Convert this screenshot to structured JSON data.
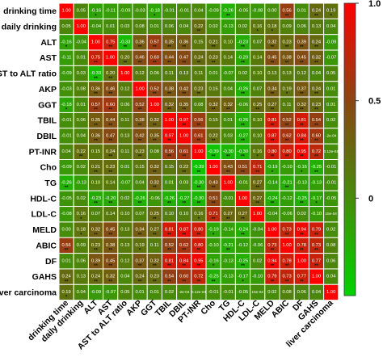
{
  "chart_data": {
    "type": "heatmap",
    "title": "",
    "xlabel": "",
    "ylabel": "",
    "variables": [
      "drinking time",
      "daily drinking",
      "ALT",
      "AST",
      "AST to ALT ratio",
      "AKP",
      "GGT",
      "TBIL",
      "DBIL",
      "PT-INR",
      "Cho",
      "TG",
      "HDL-C",
      "LDL-C",
      "MELD",
      "ABIC",
      "DF",
      "GAHS",
      "liver carcinoma"
    ],
    "values": [
      [
        "1.00",
        "0.05",
        "-0.16",
        "-0.11",
        "-0.09",
        "-0.03",
        "-0.18",
        "-0.01",
        "-0.01",
        "0.04",
        "-0.09",
        "-0.26",
        "-0.05",
        "-0.08",
        "0.00",
        "0.56",
        "0.01",
        "0.24",
        "0.19"
      ],
      [
        "0.05",
        "1.00",
        "-0.04",
        "0.01",
        "0.03",
        "0.08",
        "0.01",
        "0.06",
        "0.04",
        "0.22",
        "0.02",
        "-0.13",
        "0.02",
        "0.16",
        "0.18",
        "0.09",
        "0.06",
        "0.13",
        "0.04"
      ],
      [
        "-0.16",
        "-0.04",
        "1.00",
        "0.75",
        "-0.33",
        "0.36",
        "0.57",
        "0.35",
        "0.36",
        "0.15",
        "0.21",
        "0.10",
        "-0.23",
        "0.07",
        "0.32",
        "0.23",
        "0.39",
        "0.24",
        "-0.09"
      ],
      [
        "-0.11",
        "0.01",
        "0.75",
        "1.00",
        "0.20",
        "0.46",
        "0.60",
        "0.44",
        "0.47",
        "0.24",
        "0.23",
        "0.14",
        "-0.20",
        "0.14",
        "0.45",
        "0.38",
        "0.45",
        "0.32",
        "-0.07"
      ],
      [
        "-0.09",
        "0.03",
        "-0.33",
        "0.20",
        "1.00",
        "0.12",
        "0.06",
        "0.11",
        "0.13",
        "0.11",
        "0.01",
        "-0.07",
        "0.02",
        "0.10",
        "0.13",
        "0.13",
        "0.12",
        "0.04",
        "0.05"
      ],
      [
        "-0.03",
        "0.08",
        "0.36",
        "0.46",
        "0.12",
        "1.00",
        "0.52",
        "0.38",
        "0.42",
        "0.23",
        "0.15",
        "0.04",
        "-0.26",
        "0.07",
        "0.34",
        "0.19",
        "0.37",
        "0.24",
        "0.01"
      ],
      [
        "-0.18",
        "0.01",
        "0.57",
        "0.60",
        "0.06",
        "0.52",
        "1.00",
        "0.32",
        "0.35",
        "0.08",
        "0.32",
        "0.32",
        "-0.06",
        "0.25",
        "0.27",
        "0.11",
        "0.32",
        "0.23",
        "0.01"
      ],
      [
        "-0.01",
        "0.06",
        "0.35",
        "0.44",
        "0.11",
        "0.38",
        "0.32",
        "1.00",
        "0.97",
        "0.56",
        "0.15",
        "0.01",
        "-0.26",
        "0.10",
        "0.81",
        "0.52",
        "0.81",
        "0.54",
        "0.02"
      ],
      [
        "-0.01",
        "0.04",
        "0.36",
        "0.47",
        "0.13",
        "0.42",
        "0.35",
        "0.97",
        "1.00",
        "0.61",
        "0.22",
        "0.03",
        "-0.27",
        "0.10",
        "0.87",
        "0.62",
        "0.84",
        "0.60",
        "-2e-04"
      ],
      [
        "0.04",
        "0.22",
        "0.15",
        "0.24",
        "0.11",
        "0.23",
        "0.08",
        "0.56",
        "0.61",
        "1.00",
        "-0.39",
        "-0.30",
        "-0.30",
        "0.16",
        "0.80",
        "0.80",
        "0.95",
        "0.72",
        "0.12e-04"
      ],
      [
        "-0.09",
        "0.02",
        "0.21",
        "0.23",
        "0.01",
        "0.15",
        "0.32",
        "0.15",
        "0.22",
        "-0.39",
        "1.00",
        "0.43",
        "0.51",
        "0.71",
        "-0.19",
        "-0.10",
        "-0.16",
        "-0.25",
        "-0.01"
      ],
      [
        "-0.26",
        "-0.13",
        "0.10",
        "0.14",
        "-0.07",
        "0.04",
        "0.32",
        "0.01",
        "0.03",
        "-0.30",
        "0.43",
        "1.00",
        "-0.01",
        "0.27",
        "-0.14",
        "-0.21",
        "-0.13",
        "-0.13",
        "-0.01"
      ],
      [
        "-0.05",
        "0.02",
        "-0.23",
        "-0.20",
        "0.02",
        "-0.26",
        "-0.06",
        "-0.26",
        "-0.27",
        "-0.30",
        "0.51",
        "-0.01",
        "1.00",
        "0.27",
        "-0.24",
        "-0.12",
        "-0.25",
        "-0.17",
        "-0.05"
      ],
      [
        "-0.08",
        "0.16",
        "0.07",
        "0.14",
        "0.10",
        "0.07",
        "0.25",
        "0.10",
        "0.10",
        "0.16",
        "0.71",
        "0.27",
        "0.27",
        "1.00",
        "-0.04",
        "-0.06",
        "0.02",
        "-0.10",
        "15e-04"
      ],
      [
        "0.00",
        "0.18",
        "0.32",
        "0.45",
        "0.13",
        "0.34",
        "0.27",
        "0.81",
        "0.87",
        "0.80",
        "-0.19",
        "-0.14",
        "-0.24",
        "-0.04",
        "1.00",
        "0.73",
        "0.94",
        "0.79",
        "0.02"
      ],
      [
        "0.56",
        "0.09",
        "0.23",
        "0.38",
        "0.13",
        "0.19",
        "0.11",
        "0.52",
        "0.62",
        "0.80",
        "-0.10",
        "-0.21",
        "-0.12",
        "-0.06",
        "0.73",
        "1.00",
        "0.78",
        "0.73",
        "0.08"
      ],
      [
        "0.01",
        "0.06",
        "0.39",
        "0.45",
        "0.12",
        "0.37",
        "0.32",
        "0.81",
        "0.84",
        "0.95",
        "-0.16",
        "-0.13",
        "-0.25",
        "0.02",
        "0.94",
        "0.78",
        "1.00",
        "0.77",
        "0.06"
      ],
      [
        "0.24",
        "0.13",
        "0.24",
        "0.32",
        "0.04",
        "0.24",
        "0.23",
        "0.54",
        "0.60",
        "0.72",
        "-0.25",
        "-0.13",
        "-0.17",
        "-0.10",
        "0.79",
        "0.73",
        "0.77",
        "1.00",
        "0.04"
      ],
      [
        "0.19",
        "0.04",
        "-0.09",
        "-0.07",
        "0.05",
        "0.01",
        "0.01",
        "0.02",
        "-2e-04",
        "0.12e-04",
        "-0.01",
        "-0.01",
        "-0.05",
        "15e-04",
        "0.02",
        "0.08",
        "0.06",
        "0.04",
        "1.00"
      ]
    ],
    "significance": [
      [
        "",
        "",
        "*",
        "",
        "",
        "",
        "*",
        "",
        "",
        "",
        "",
        "**",
        "",
        "",
        "",
        "**",
        "",
        "**",
        "*"
      ],
      [
        "",
        "",
        "",
        "",
        "",
        "",
        "",
        "",
        "",
        "**",
        "",
        "",
        "",
        "*",
        "*",
        "",
        "",
        "",
        ""
      ],
      [
        "*",
        "",
        "",
        "**",
        "**",
        "**",
        "**",
        "**",
        "**",
        "",
        "**",
        "",
        "**",
        "",
        "**",
        "**",
        "**",
        "**",
        ""
      ],
      [
        "",
        "",
        "**",
        "",
        "**",
        "**",
        "**",
        "**",
        "**",
        "**",
        "**",
        "",
        "**",
        "",
        "**",
        "**",
        "**",
        "**",
        ""
      ],
      [
        "",
        "",
        "**",
        "**",
        "",
        "",
        "",
        "",
        "",
        "",
        "",
        "",
        "",
        "",
        "",
        "",
        "",
        "",
        ""
      ],
      [
        "",
        "",
        "**",
        "**",
        "",
        "",
        "**",
        "**",
        "**",
        "**",
        "",
        "",
        "**",
        "",
        "**",
        "*",
        "**",
        "**",
        ""
      ],
      [
        "*",
        "",
        "**",
        "**",
        "",
        "**",
        "",
        "**",
        "**",
        "",
        "**",
        "**",
        "",
        "**",
        "**",
        "",
        "**",
        "**",
        ""
      ],
      [
        "",
        "",
        "**",
        "**",
        "",
        "**",
        "**",
        "",
        "**",
        "**",
        "",
        "",
        "**",
        "",
        "**",
        "**",
        "**",
        "**",
        ""
      ],
      [
        "",
        "",
        "**",
        "**",
        "",
        "**",
        "**",
        "**",
        "",
        "**",
        "**",
        "",
        "**",
        "",
        "**",
        "**",
        "**",
        "**",
        ""
      ],
      [
        "",
        "**",
        "",
        "**",
        "",
        "**",
        "",
        "**",
        "**",
        "",
        "**",
        "**",
        "**",
        "*",
        "**",
        "**",
        "**",
        "**",
        ""
      ],
      [
        "",
        "",
        "**",
        "**",
        "",
        "",
        "**",
        "",
        "**",
        "**",
        "",
        "**",
        "**",
        "**",
        "*",
        "",
        "*",
        "**",
        ""
      ],
      [
        "**",
        "",
        "",
        "",
        "",
        "",
        "**",
        "",
        "",
        "**",
        "**",
        "",
        "",
        "**",
        "",
        "**",
        "",
        "",
        ""
      ],
      [
        "",
        "",
        "**",
        "**",
        "",
        "**",
        "",
        "**",
        "**",
        "**",
        "**",
        "",
        "",
        "**",
        "**",
        "",
        "**",
        "*",
        ""
      ],
      [
        "",
        "*",
        "",
        "",
        "",
        "",
        "**",
        "",
        "",
        "*",
        "**",
        "**",
        "**",
        "",
        "",
        "",
        "",
        "",
        ""
      ],
      [
        "",
        "*",
        "**",
        "**",
        "",
        "**",
        "**",
        "**",
        "**",
        "**",
        "*",
        "",
        "**",
        "",
        "",
        "**",
        "**",
        "**",
        ""
      ],
      [
        "**",
        "",
        "**",
        "**",
        "",
        "*",
        "",
        "**",
        "**",
        "**",
        "",
        "**",
        "",
        "",
        "**",
        "",
        "**",
        "**",
        ""
      ],
      [
        "",
        "",
        "**",
        "**",
        "",
        "**",
        "**",
        "**",
        "**",
        "**",
        "*",
        "",
        "**",
        "",
        "**",
        "**",
        "",
        "**",
        ""
      ],
      [
        "**",
        "",
        "**",
        "**",
        "",
        "**",
        "**",
        "**",
        "**",
        "**",
        "**",
        "",
        "*",
        "",
        "**",
        "**",
        "**",
        "",
        ""
      ],
      [
        "*",
        "",
        "",
        "",
        "",
        "",
        "",
        "",
        "",
        "",
        "",
        "",
        "",
        "",
        "",
        "",
        "",
        "",
        ""
      ]
    ],
    "colorbar": {
      "ticks": [
        "1.0",
        "0.5",
        "0"
      ],
      "tick_values": [
        1.0,
        0.5,
        0.0
      ],
      "range": [
        -0.5,
        1.0
      ],
      "colors": {
        "low": "#00d400",
        "mid": "#8a4513",
        "high": "#ff0000"
      }
    },
    "grid_color": "#ffffff"
  }
}
